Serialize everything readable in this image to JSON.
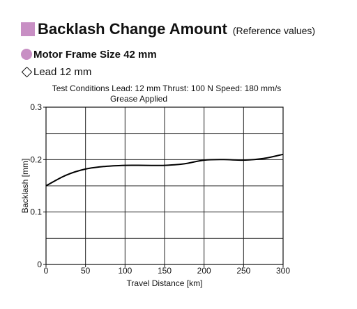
{
  "header": {
    "title": "Backlash Change Amount",
    "subtitle": "(Reference values)",
    "motor_frame": "Motor Frame Size 42 mm",
    "lead": "Lead 12 mm",
    "conditions_line1": "Test Conditions  Lead: 12 mm  Thrust: 100 N  Speed: 180 mm/s",
    "conditions_line2": "Grease Applied",
    "accent_color": "#c88fc4"
  },
  "chart_data": {
    "type": "line",
    "xlabel": "Travel Distance [km]",
    "ylabel": "Backlash [mm]",
    "xlim": [
      0,
      300
    ],
    "ylim": [
      0,
      0.3
    ],
    "x_ticks": [
      0,
      50,
      100,
      150,
      200,
      250,
      300
    ],
    "x_tick_labels": [
      "0",
      "50",
      "100",
      "150",
      "200",
      "250",
      "300"
    ],
    "y_ticks": [
      0,
      0.1,
      0.2,
      0.3
    ],
    "y_tick_labels": [
      "0",
      "0.1",
      "0.2",
      "0.3"
    ],
    "grid": true,
    "series": [
      {
        "x": [
          0,
          25,
          50,
          75,
          100,
          125,
          150,
          175,
          200,
          225,
          250,
          275,
          300
        ],
        "y": [
          0.15,
          0.17,
          0.182,
          0.187,
          0.189,
          0.189,
          0.189,
          0.192,
          0.199,
          0.2,
          0.199,
          0.202,
          0.21
        ]
      }
    ]
  }
}
